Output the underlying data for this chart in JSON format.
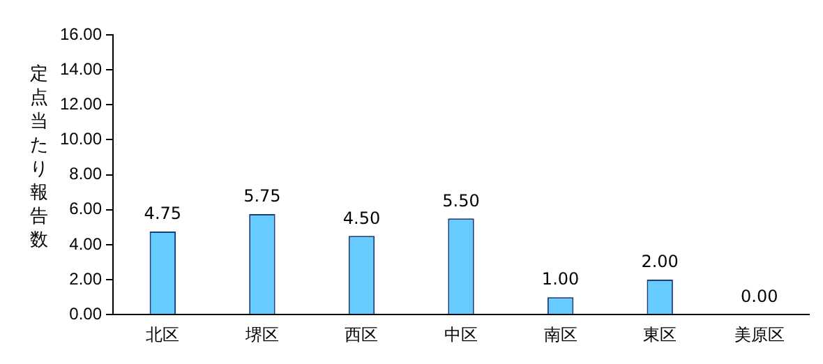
{
  "chart_data": {
    "type": "bar",
    "ylabel": "定点当たり報告数",
    "categories": [
      "北区",
      "堺区",
      "西区",
      "中区",
      "南区",
      "東区",
      "美原区"
    ],
    "values": [
      4.75,
      5.75,
      4.5,
      5.5,
      1,
      2,
      0
    ],
    "value_labels": [
      "4.75",
      "5.75",
      "4.50",
      "5.50",
      "1.00",
      "2.00",
      "0.00"
    ],
    "color": "#66ccff",
    "ylim": [
      0,
      16
    ],
    "yticks": [
      {
        "value": 0,
        "label": "0.00"
      },
      {
        "value": 2,
        "label": "2.00"
      },
      {
        "value": 4,
        "label": "4.00"
      },
      {
        "value": 6,
        "label": "6.00"
      },
      {
        "value": 8,
        "label": "8.00"
      },
      {
        "value": 10,
        "label": "10.00"
      },
      {
        "value": 12,
        "label": "12.00"
      },
      {
        "value": 14,
        "label": "14.00"
      },
      {
        "value": 16,
        "label": "16.00"
      }
    ],
    "grid": false,
    "legend": false
  }
}
